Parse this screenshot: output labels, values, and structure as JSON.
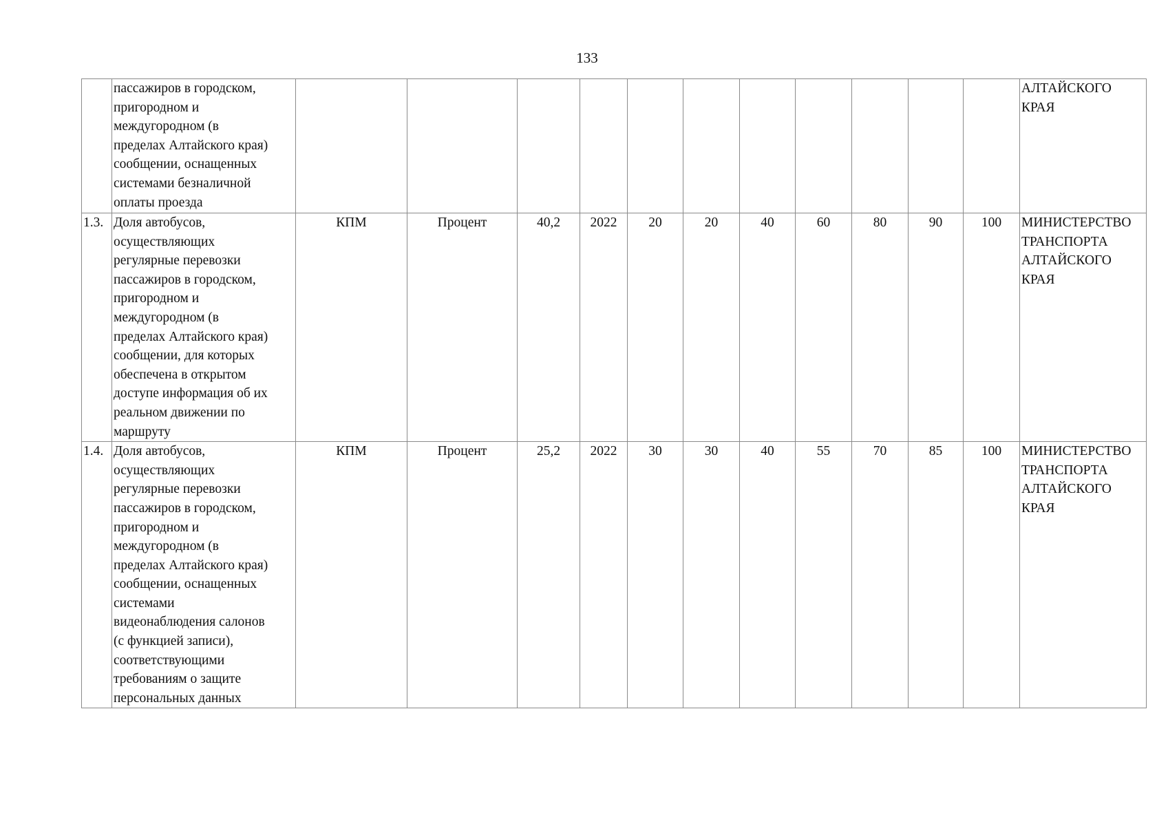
{
  "page_number": "133",
  "rows": [
    {
      "num": "",
      "name": "пассажиров в городском,\nпригородном и\nмеждугородном (в\nпределах Алтайского края)\nсообщении, оснащенных\nсистемами безналичной\nоплаты проезда",
      "type": "",
      "unit": "",
      "base": "",
      "year": "",
      "v": [
        "",
        "",
        "",
        "",
        "",
        "",
        ""
      ],
      "resp": "АЛТАЙСКОГО\nКРАЯ"
    },
    {
      "num": "1.3.",
      "name": "Доля автобусов,\nосуществляющих\nрегулярные перевозки\nпассажиров в городском,\nпригородном и\nмеждугородном (в\nпределах Алтайского края)\nсообщении, для которых\nобеспечена в открытом\nдоступе информация об их\nреальном движении по\nмаршруту",
      "type": "КПМ",
      "unit": "Процент",
      "base": "40,2",
      "year": "2022",
      "v": [
        "20",
        "20",
        "40",
        "60",
        "80",
        "90",
        "100"
      ],
      "resp": "МИНИСТЕРСТВО\nТРАНСПОРТА\nАЛТАЙСКОГО\nКРАЯ"
    },
    {
      "num": "1.4.",
      "name": "Доля автобусов,\nосуществляющих\nрегулярные перевозки\nпассажиров в городском,\nпригородном и\nмеждугородном (в\nпределах Алтайского края)\nсообщении, оснащенных\nсистемами\nвидеонаблюдения салонов\n(с функцией записи),\nсоответствующими\nтребованиям о защите\nперсональных данных",
      "type": "КПМ",
      "unit": "Процент",
      "base": "25,2",
      "year": "2022",
      "v": [
        "30",
        "30",
        "40",
        "55",
        "70",
        "85",
        "100"
      ],
      "resp": "МИНИСТЕРСТВО\nТРАНСПОРТА\nАЛТАЙСКОГО\nКРАЯ"
    }
  ]
}
